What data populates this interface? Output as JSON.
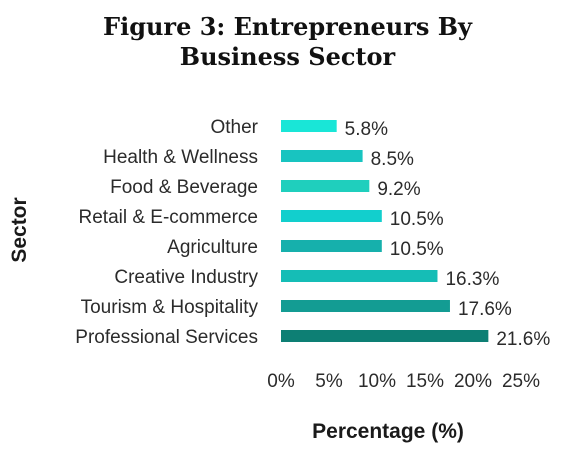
{
  "chart_data": {
    "type": "bar",
    "orientation": "horizontal",
    "title_line1": "Figure 3: Entrepreneurs By",
    "title_line2": "Business Sector",
    "xlabel": "Percentage (%)",
    "ylabel": "Sector",
    "xlim": [
      0,
      25
    ],
    "xticks": [
      "0%",
      "5%",
      "10%",
      "15%",
      "20%",
      "25%"
    ],
    "grid": false,
    "categories": [
      "Other",
      "Health & Wellness",
      "Food & Beverage",
      "Retail & E-commerce",
      "Agriculture",
      "Creative Industry",
      "Tourism & Hospitality",
      "Professional Services"
    ],
    "values": [
      5.8,
      8.5,
      9.2,
      10.5,
      10.5,
      16.3,
      17.6,
      21.6
    ],
    "value_labels": [
      "5.8%",
      "8.5%",
      "9.2%",
      "10.5%",
      "10.5%",
      "16.3%",
      "17.6%",
      "21.6%"
    ],
    "colors": [
      "#19e6d7",
      "#18c4c0",
      "#1fcfbd",
      "#12cfcd",
      "#16b0ac",
      "#15bdb6",
      "#139c93",
      "#0d7f74"
    ]
  }
}
